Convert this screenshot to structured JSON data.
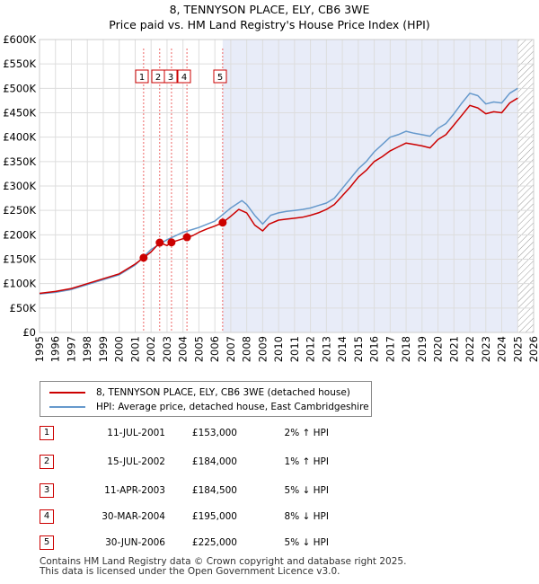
{
  "title_line1": "8, TENNYSON PLACE, ELY, CB6 3WE",
  "title_line2": "Price paid vs. HM Land Registry's House Price Index (HPI)",
  "chart_data": {
    "type": "line",
    "xlim": [
      1995,
      2026
    ],
    "ylim": [
      0,
      600000
    ],
    "x_ticks": [
      1995,
      1996,
      1997,
      1998,
      1999,
      2000,
      2001,
      2002,
      2003,
      2004,
      2005,
      2006,
      2007,
      2008,
      2009,
      2010,
      2011,
      2012,
      2013,
      2014,
      2015,
      2016,
      2017,
      2018,
      2019,
      2020,
      2021,
      2022,
      2023,
      2024,
      2025,
      2026
    ],
    "y_ticks": [
      {
        "value": 0,
        "label": "£0"
      },
      {
        "value": 50000,
        "label": "£50K"
      },
      {
        "value": 100000,
        "label": "£100K"
      },
      {
        "value": 150000,
        "label": "£150K"
      },
      {
        "value": 200000,
        "label": "£200K"
      },
      {
        "value": 250000,
        "label": "£250K"
      },
      {
        "value": 300000,
        "label": "£300K"
      },
      {
        "value": 350000,
        "label": "£350K"
      },
      {
        "value": 400000,
        "label": "£400K"
      },
      {
        "value": 450000,
        "label": "£450K"
      },
      {
        "value": 500000,
        "label": "£500K"
      },
      {
        "value": 550000,
        "label": "£550K"
      },
      {
        "value": 600000,
        "label": "£600K"
      }
    ],
    "shaded_region": {
      "from": 2006.49,
      "to": 2025.0
    },
    "hatched_region": {
      "from": 2025.0,
      "to": 2026.0
    },
    "series": [
      {
        "name": "8, TENNYSON PLACE, ELY, CB6 3WE (detached house)",
        "color": "#cc0000",
        "x": [
          1995,
          1996,
          1997,
          1998,
          1999,
          2000,
          2001,
          2001.53,
          2002,
          2002.54,
          2003,
          2003.28,
          2003.6,
          2004,
          2004.25,
          2004.6,
          2005,
          2005.5,
          2006,
          2006.5,
          2007,
          2007.5,
          2008,
          2008.5,
          2009,
          2009.4,
          2010,
          2010.5,
          2011,
          2011.5,
          2012,
          2012.5,
          2013,
          2013.5,
          2014,
          2014.5,
          2015,
          2015.5,
          2016,
          2016.5,
          2017,
          2017.5,
          2018,
          2018.5,
          2019,
          2019.5,
          2020,
          2020.5,
          2021,
          2021.5,
          2022,
          2022.5,
          2023,
          2023.5,
          2024,
          2024.5,
          2025
        ],
        "y": [
          80000,
          84000,
          90000,
          100000,
          110000,
          120000,
          140000,
          153000,
          165000,
          184000,
          178000,
          184500,
          188000,
          192000,
          195000,
          198000,
          205000,
          212000,
          218000,
          225000,
          238000,
          252000,
          245000,
          220000,
          208000,
          222000,
          230000,
          232000,
          234000,
          236000,
          240000,
          245000,
          252000,
          262000,
          280000,
          298000,
          318000,
          332000,
          350000,
          360000,
          372000,
          380000,
          388000,
          385000,
          382000,
          378000,
          395000,
          405000,
          425000,
          445000,
          465000,
          460000,
          448000,
          452000,
          450000,
          470000,
          480000
        ]
      },
      {
        "name": "HPI: Average price, detached house, East Cambridgeshire",
        "color": "#6699cc",
        "x": [
          1995,
          1996,
          1997,
          1998,
          1999,
          2000,
          2001,
          2002,
          2003,
          2004,
          2005,
          2006,
          2007,
          2007.7,
          2008,
          2008.5,
          2009,
          2009.5,
          2010,
          2010.5,
          2011,
          2011.5,
          2012,
          2012.5,
          2013,
          2013.5,
          2014,
          2014.5,
          2015,
          2015.5,
          2016,
          2016.5,
          2017,
          2017.5,
          2018,
          2018.5,
          2019,
          2019.5,
          2020,
          2020.5,
          2021,
          2021.5,
          2022,
          2022.5,
          2023,
          2023.5,
          2024,
          2024.5,
          2025
        ],
        "y": [
          79000,
          82000,
          88000,
          98000,
          108000,
          118000,
          138000,
          170000,
          190000,
          205000,
          215000,
          228000,
          255000,
          270000,
          262000,
          240000,
          222000,
          240000,
          245000,
          248000,
          250000,
          252000,
          255000,
          260000,
          265000,
          275000,
          295000,
          315000,
          335000,
          350000,
          370000,
          385000,
          400000,
          405000,
          412000,
          408000,
          405000,
          402000,
          418000,
          428000,
          448000,
          470000,
          490000,
          485000,
          468000,
          472000,
          470000,
          490000,
          500000
        ]
      }
    ],
    "sale_points": [
      {
        "id": "1",
        "x": 2001.53,
        "y": 153000
      },
      {
        "id": "2",
        "x": 2002.54,
        "y": 184000
      },
      {
        "id": "3",
        "x": 2003.28,
        "y": 184500
      },
      {
        "id": "4",
        "x": 2004.25,
        "y": 195000
      },
      {
        "id": "5",
        "x": 2006.49,
        "y": 225000
      }
    ]
  },
  "legend": {
    "property_label": "8, TENNYSON PLACE, ELY, CB6 3WE (detached house)",
    "hpi_label": "HPI: Average price, detached house, East Cambridgeshire",
    "property_color": "#cc0000",
    "hpi_color": "#6699cc"
  },
  "sales": [
    {
      "id": "1",
      "date": "11-JUL-2001",
      "price": "£153,000",
      "hpi": "2% ↑ HPI"
    },
    {
      "id": "2",
      "date": "15-JUL-2002",
      "price": "£184,000",
      "hpi": "1% ↑ HPI"
    },
    {
      "id": "3",
      "date": "11-APR-2003",
      "price": "£184,500",
      "hpi": "5% ↓ HPI"
    },
    {
      "id": "4",
      "date": "30-MAR-2004",
      "price": "£195,000",
      "hpi": "8% ↓ HPI"
    },
    {
      "id": "5",
      "date": "30-JUN-2006",
      "price": "£225,000",
      "hpi": "5% ↓ HPI"
    }
  ],
  "footer": {
    "line1": "Contains HM Land Registry data © Crown copyright and database right 2025.",
    "line2": "This data is licensed under the Open Government Licence v3.0."
  }
}
